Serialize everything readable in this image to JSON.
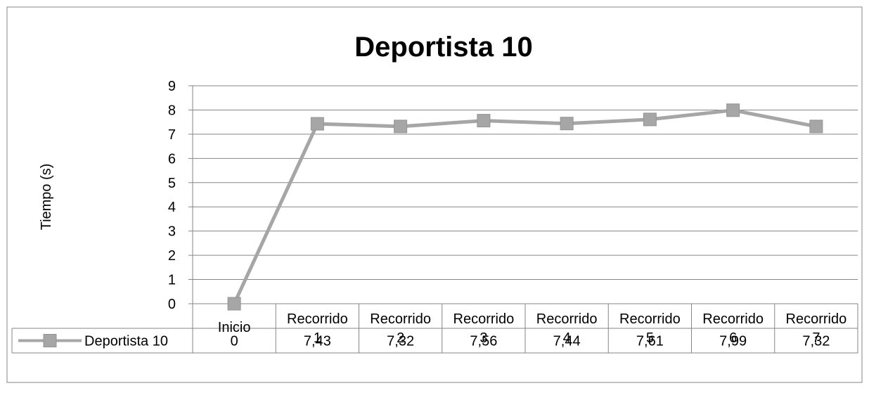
{
  "chart_data": {
    "type": "line",
    "title": "Deportista 10",
    "ylabel": "Tiempo (s)",
    "xlabel": "",
    "ylim": [
      0,
      9
    ],
    "yticks": [
      0,
      1,
      2,
      3,
      4,
      5,
      6,
      7,
      8,
      9
    ],
    "grid": true,
    "legend": "data-table-left",
    "categories": [
      [
        "Inicio"
      ],
      [
        "Recorrido",
        "1"
      ],
      [
        "Recorrido",
        "2"
      ],
      [
        "Recorrido",
        "3"
      ],
      [
        "Recorrido",
        "4"
      ],
      [
        "Recorrido",
        "5"
      ],
      [
        "Recorrido",
        "6"
      ],
      [
        "Recorrido",
        "7"
      ]
    ],
    "series": [
      {
        "name": "Deportista 10",
        "values": [
          0,
          7.43,
          7.32,
          7.56,
          7.44,
          7.61,
          7.99,
          7.32
        ],
        "value_labels": [
          "0",
          "7,43",
          "7,32",
          "7,56",
          "7,44",
          "7,61",
          "7,99",
          "7,32"
        ],
        "color": "#a6a6a6",
        "marker": "square"
      }
    ]
  }
}
